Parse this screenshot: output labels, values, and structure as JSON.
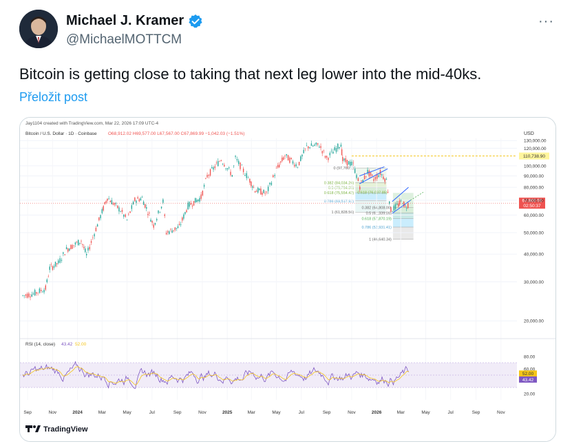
{
  "author": {
    "name": "Michael J. Kramer",
    "handle": "@MichaelMOTTCM",
    "verified_color": "#1d9bf0"
  },
  "more_label": "···",
  "tweet": {
    "text": "Bitcoin is getting close to taking that next leg lower into the mid-40ks.",
    "translate_label": "Přeložit post"
  },
  "chart_header": {
    "created": "Jay1104 created with TradingView.com, Mar 22, 2026 17:09 UTC-4",
    "symbol": "Bitcoin / U.S. Dollar · 1D · Coinbase",
    "ohlc": "O68,912.02  H69,577.00  L67,567.00  C67,869.99  −1,042.03 (−1.51%)",
    "currency": "USD"
  },
  "rsi_header": {
    "label": "RSI (14, close)",
    "value1": "43.42",
    "value2": "52.00"
  },
  "tv_logo_text": "TradingView",
  "chart_data": {
    "type": "line",
    "title": "Bitcoin / U.S. Dollar · 1D · Coinbase",
    "y_ticks": [
      "130,000.00",
      "120,000.00",
      "100,000.00",
      "90,000.00",
      "80,000.00",
      "70,000.00",
      "60,000.00",
      "50,000.00",
      "40,000.00",
      "30,000.00",
      "20,000.00"
    ],
    "y_tick_values": [
      130000,
      120000,
      100000,
      90000,
      80000,
      70000,
      60000,
      50000,
      40000,
      30000,
      20000
    ],
    "ylim": [
      17000,
      133000
    ],
    "x_ticks": [
      "Sep",
      "Nov",
      "2024",
      "Mar",
      "May",
      "Jul",
      "Sep",
      "Nov",
      "2025",
      "Mar",
      "May",
      "Jul",
      "Sep",
      "Nov",
      "2026",
      "Mar",
      "May",
      "Jul",
      "Sep",
      "Nov"
    ],
    "x_tick_dates": [
      "2023-09-01",
      "2023-11-01",
      "2024-01-01",
      "2024-03-01",
      "2024-05-01",
      "2024-07-01",
      "2024-09-01",
      "2024-11-01",
      "2025-01-01",
      "2025-03-01",
      "2025-05-01",
      "2025-07-01",
      "2025-09-01",
      "2025-11-01",
      "2026-01-01",
      "2026-03-01",
      "2026-05-01",
      "2026-07-01",
      "2026-09-01",
      "2026-11-01"
    ],
    "price_series": [
      [
        "2023-08-20",
        26000
      ],
      [
        "2023-09-15",
        26500
      ],
      [
        "2023-10-15",
        28000
      ],
      [
        "2023-10-25",
        34500
      ],
      [
        "2023-11-15",
        36500
      ],
      [
        "2023-12-05",
        42000
      ],
      [
        "2024-01-10",
        46000
      ],
      [
        "2024-01-23",
        39500
      ],
      [
        "2024-02-15",
        52000
      ],
      [
        "2024-03-01",
        62000
      ],
      [
        "2024-03-14",
        72000
      ],
      [
        "2024-04-15",
        63000
      ],
      [
        "2024-05-01",
        57000
      ],
      [
        "2024-05-20",
        70000
      ],
      [
        "2024-06-07",
        71500
      ],
      [
        "2024-07-05",
        54000
      ],
      [
        "2024-07-28",
        69000
      ],
      [
        "2024-08-05",
        50000
      ],
      [
        "2024-09-06",
        53000
      ],
      [
        "2024-09-27",
        66000
      ],
      [
        "2024-10-29",
        72000
      ],
      [
        "2024-11-13",
        90000
      ],
      [
        "2024-12-17",
        107000
      ],
      [
        "2025-01-13",
        91000
      ],
      [
        "2025-01-21",
        108000
      ],
      [
        "2025-02-25",
        86000
      ],
      [
        "2025-03-10",
        78000
      ],
      [
        "2025-04-07",
        75000
      ],
      [
        "2025-05-01",
        96000
      ],
      [
        "2025-05-22",
        111000
      ],
      [
        "2025-06-22",
        100000
      ],
      [
        "2025-07-14",
        122000
      ],
      [
        "2025-08-14",
        124000
      ],
      [
        "2025-09-01",
        108000
      ],
      [
        "2025-10-06",
        126000
      ],
      [
        "2025-10-10",
        106000
      ],
      [
        "2025-11-05",
        101000
      ],
      [
        "2025-11-21",
        81000
      ],
      [
        "2025-12-10",
        94000
      ],
      [
        "2025-12-25",
        87000
      ],
      [
        "2026-01-10",
        93000
      ],
      [
        "2026-01-25",
        86000
      ],
      [
        "2026-02-05",
        63000
      ],
      [
        "2026-02-20",
        66000
      ],
      [
        "2026-03-05",
        69500
      ],
      [
        "2026-03-12",
        65000
      ],
      [
        "2026-03-22",
        67870
      ]
    ],
    "current_price_label": "67,869.99",
    "countdown_label": "02:50:37",
    "target_line": {
      "value": 110738.9,
      "label": "110,738.90",
      "color": "#f5c518"
    },
    "fib_upper": [
      {
        "level": "0",
        "label": "0 (97,760.1)",
        "value": 97760
      },
      {
        "level": "0.382",
        "label": "0.382 (84,034.26)",
        "value": 84034
      },
      {
        "level": "0.5",
        "label": "0.5 (79,794.35)",
        "value": 79794
      },
      {
        "level": "0.618",
        "label": "0.618 (75,554.42)",
        "value": 75554
      },
      {
        "level": "0.786",
        "label": "0.786 (69,517.92)",
        "value": 69518
      },
      {
        "level": "1",
        "label": "1 (61,828.56)",
        "value": 61829
      }
    ],
    "fib_upper_extra": {
      "label": "0.618 (76,037.85)",
      "value": 76038
    },
    "fib_lower": [
      {
        "level": "0.382",
        "label": "0.382 (64,808.00)",
        "value": 64808
      },
      {
        "level": "0.5",
        "label": "0.5 (61,339.09)",
        "value": 61339
      },
      {
        "level": "0.618",
        "label": "0.618 (57,870.19)",
        "value": 57870
      },
      {
        "level": "0.786",
        "label": "0.786 (52,931.41)",
        "value": 52931
      },
      {
        "level": "1",
        "label": "1 (46,640.34)",
        "value": 46640
      }
    ],
    "rsi": {
      "y_ticks": [
        "80.00",
        "60.00",
        "20.00"
      ],
      "y_tick_values": [
        80,
        60,
        20
      ],
      "upper_band": 70,
      "lower_band": 30,
      "current": "43.42",
      "signal": "52.00",
      "ylim": [
        10,
        90
      ],
      "series_color": "#7e57c2",
      "signal_color": "#f5c518"
    },
    "colors": {
      "up": "#26a69a",
      "down": "#ef5350",
      "channel": "#2962ff",
      "fib_green": "#c8e6c9",
      "fib_blue": "#b3e5fc",
      "fib_gray": "#e0e0e0",
      "rsi_band": "#ede7f6",
      "price_label_bg": "#ef5350",
      "current_line": "#ef5350"
    }
  }
}
